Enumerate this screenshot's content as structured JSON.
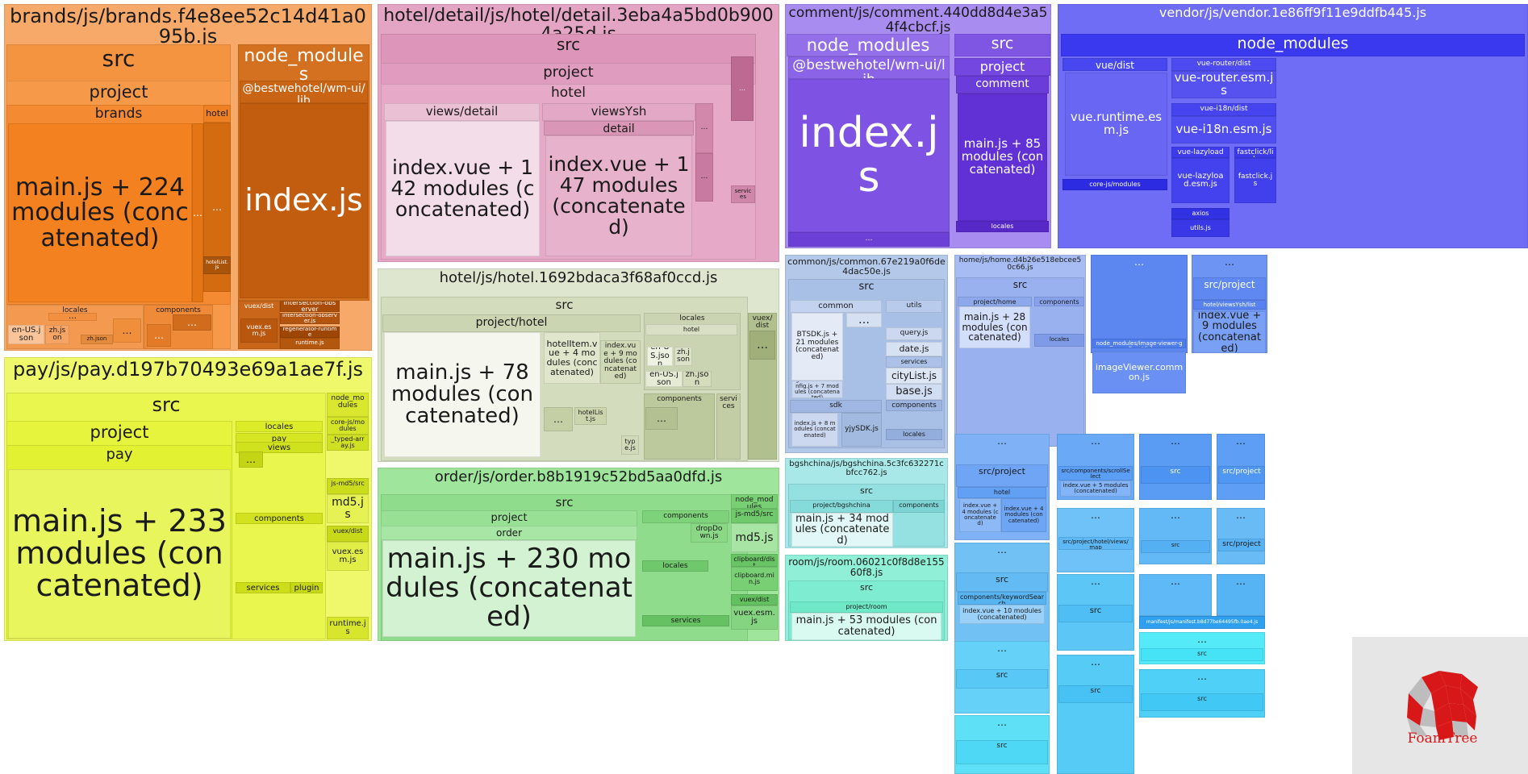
{
  "toolbar": {
    "sidebar_toggle_label": "›"
  },
  "logo": {
    "text": "FoamTree",
    "color": "#d81818"
  },
  "chart_data": {
    "type": "treemap",
    "nodes": [
      {
        "label": "brands/js/brands.f4e8ee52c14d41a095b.js",
        "color": "#f7a96a"
      },
      {
        "label": "src",
        "color": "#f59440"
      },
      {
        "label": "project",
        "color": "#f69a4a"
      },
      {
        "label": "brands",
        "color": "#f48a32"
      },
      {
        "label": "main.js + 224 modules (concatenated)",
        "color": "#f4811f"
      },
      {
        "label": "…",
        "color": "#e37514"
      },
      {
        "label": "hotel",
        "color": "#ee7f22"
      },
      {
        "label": "…",
        "color": "#d36c11"
      },
      {
        "label": "hotelList.js",
        "color": "#a8540b"
      },
      {
        "label": "locales",
        "color": "#f49a50"
      },
      {
        "label": "…",
        "color": "#f29040"
      },
      {
        "label": "en-US.json",
        "color": "#f9c49a"
      },
      {
        "label": "zh.json",
        "color": "#f5a464"
      },
      {
        "label": "zh.json",
        "color": "#e48a3c"
      },
      {
        "label": "…",
        "color": "#ef8f3c"
      },
      {
        "label": "components",
        "color": "#ee8a38"
      },
      {
        "label": "…",
        "color": "#e27a28"
      },
      {
        "label": "…",
        "color": "#d06c1c"
      },
      {
        "label": "node_modules",
        "color": "#d47120"
      },
      {
        "label": "@bestwehotel/wm-ui/lib",
        "color": "#c96414"
      },
      {
        "label": "index.js",
        "color": "#c25c0e"
      },
      {
        "label": "vuex/dist",
        "color": "#c9661a"
      },
      {
        "label": "vuex.esm.js",
        "color": "#b9570e"
      },
      {
        "label": "intersection-observer",
        "color": "#a94c08"
      },
      {
        "label": "intersection-observer.js",
        "color": "#b25510"
      },
      {
        "label": "regenerator-runtime",
        "color": "#9e4606"
      },
      {
        "label": "runtime.js",
        "color": "#b3570e"
      },
      {
        "label": "hotel/detail/js/hotel/detail.3eba4a5bd0b9004a25d.js",
        "color": "#e4a5c5"
      },
      {
        "label": "src",
        "color": "#dd96b9"
      },
      {
        "label": "project",
        "color": "#e09cbe"
      },
      {
        "label": "hotel",
        "color": "#e6aac8"
      },
      {
        "label": "views/detail",
        "color": "#eac0d5"
      },
      {
        "label": "index.vue + 142 modules (concatenated)",
        "color": "#f3dde8"
      },
      {
        "label": "viewsYsh",
        "color": "#e3a8c5"
      },
      {
        "label": "detail",
        "color": "#d996b6"
      },
      {
        "label": "index.vue + 147 modules (concatenated)",
        "color": "#e7b2cb"
      },
      {
        "label": "…",
        "color": "#d288ab"
      },
      {
        "label": "…",
        "color": "#c97aa0"
      },
      {
        "label": "…",
        "color": "#bd6a93"
      },
      {
        "label": "services",
        "color": "#cf86a8"
      },
      {
        "label": "comment/js/comment.440dd8d4e3a54f4cbcf.js",
        "color": "#a98cef"
      },
      {
        "label": "node_modules",
        "color": "#9370ea"
      },
      {
        "label": "@bestwehotel/wm-ui/lib",
        "color": "#8a63e6"
      },
      {
        "label": "index.js",
        "color": "#7e52e2"
      },
      {
        "label": "…",
        "color": "#6c3fd6"
      },
      {
        "label": "src",
        "color": "#7f55e4"
      },
      {
        "label": "project",
        "color": "#7347e0"
      },
      {
        "label": "comment",
        "color": "#6a3cda"
      },
      {
        "label": "main.js + 85 modules (concatenated)",
        "color": "#6131d6"
      },
      {
        "label": "locales",
        "color": "#5728c8"
      },
      {
        "label": "vendor/js/vendor.1e86ff9f11e9ddfb445.js",
        "color": "#6f6cf6"
      },
      {
        "label": "node_modules",
        "color": "#3a39f0"
      },
      {
        "label": "vue/dist",
        "color": "#4747ef"
      },
      {
        "label": "vue.runtime.esm.js",
        "color": "#6866f2"
      },
      {
        "label": "vue-router/dist",
        "color": "#4d4bef"
      },
      {
        "label": "vue-router.esm.js",
        "color": "#5552f0"
      },
      {
        "label": "vue-i18n/dist",
        "color": "#4544ee"
      },
      {
        "label": "vue-i18n.esm.js",
        "color": "#504ef0"
      },
      {
        "label": "vue-lazyload",
        "color": "#3d3bec"
      },
      {
        "label": "vue-lazyload.esm.js",
        "color": "#4442ee"
      },
      {
        "label": "fastclick/lib",
        "color": "#3b39ea"
      },
      {
        "label": "fastclick.js",
        "color": "#4240ec"
      },
      {
        "label": "core-js/modules",
        "color": "#2d2be2"
      },
      {
        "label": "axios",
        "color": "#3331e4"
      },
      {
        "label": "utils.js",
        "color": "#3a38e6"
      },
      {
        "label": "hotel/js/hotel.1692bdaca3f68af0ccd.js",
        "color": "#dfe6cf"
      },
      {
        "label": "src",
        "color": "#d3dcbd"
      },
      {
        "label": "project/hotel",
        "color": "#cbd5b2"
      },
      {
        "label": "main.js + 78 modules (concatenated)",
        "color": "#f5f7ef"
      },
      {
        "label": "hotelItem.vue + 4 modules (concatenated)",
        "color": "#dfe6cb"
      },
      {
        "label": "index.vue + 9 modules (concatenated)",
        "color": "#cfd9b6"
      },
      {
        "label": "…",
        "color": "#c4cfa6"
      },
      {
        "label": "hotelList.js",
        "color": "#cad4ad"
      },
      {
        "label": "locales",
        "color": "#cbd4b2"
      },
      {
        "label": "hotel",
        "color": "#d8dfc4"
      },
      {
        "label": "en-US.json",
        "color": "#eef2e2"
      },
      {
        "label": "zh.json",
        "color": "#dbe2c7"
      },
      {
        "label": "en-US.json",
        "color": "#e6ebd6"
      },
      {
        "label": "zh.json",
        "color": "#d4dcbd"
      },
      {
        "label": "components",
        "color": "#bcc99c"
      },
      {
        "label": "…",
        "color": "#b3c192"
      },
      {
        "label": "services",
        "color": "#c2cda6"
      },
      {
        "label": "type.js",
        "color": "#d1dab8"
      },
      {
        "label": "vuex/dist",
        "color": "#b1c08f"
      },
      {
        "label": "…",
        "color": "#9fb07b"
      },
      {
        "label": "pay/js/pay.d197b70493e69a1ae7f.js",
        "color": "#eef86a"
      },
      {
        "label": "src",
        "color": "#e9f64e"
      },
      {
        "label": "project",
        "color": "#e6f43e"
      },
      {
        "label": "pay",
        "color": "#e2f233"
      },
      {
        "label": "main.js + 233 modules (concatenated)",
        "color": "#e9f55c"
      },
      {
        "label": "locales",
        "color": "#dcec28"
      },
      {
        "label": "pay",
        "color": "#d6e623"
      },
      {
        "label": "views",
        "color": "#d0e11d"
      },
      {
        "label": "…",
        "color": "#c4d516"
      },
      {
        "label": "components",
        "color": "#d2e21e"
      },
      {
        "label": "services",
        "color": "#cddd19"
      },
      {
        "label": "plugins",
        "color": "#c7d815"
      },
      {
        "label": "node_modules",
        "color": "#d9e82e"
      },
      {
        "label": "core-js/modules",
        "color": "#d4e426"
      },
      {
        "label": "_typed-array.js",
        "color": "#d0e022"
      },
      {
        "label": "js-md5/src",
        "color": "#cbdc1d"
      },
      {
        "label": "md5.js",
        "color": "#e6f254"
      },
      {
        "label": "vuex/dist",
        "color": "#c7d919"
      },
      {
        "label": "vuex.esm.js",
        "color": "#e2ee48"
      },
      {
        "label": "runtime.js",
        "color": "#d7e62c"
      },
      {
        "label": "order/js/order.b8b1919c52bd5aa0dfd.js",
        "color": "#9fe59c"
      },
      {
        "label": "src",
        "color": "#8fdd8c"
      },
      {
        "label": "project",
        "color": "#97e094"
      },
      {
        "label": "order",
        "color": "#a7e6a4"
      },
      {
        "label": "main.js + 230 modules (concatenated)",
        "color": "#d3f2d1"
      },
      {
        "label": "components",
        "color": "#7ed27a"
      },
      {
        "label": "dropDown.js",
        "color": "#8ad886"
      },
      {
        "label": "locales",
        "color": "#6fc86b"
      },
      {
        "label": "services",
        "color": "#66c162"
      },
      {
        "label": "node_modules",
        "color": "#78cf74"
      },
      {
        "label": "js-md5/src",
        "color": "#70ca6c"
      },
      {
        "label": "md5.js",
        "color": "#a8e5a5"
      },
      {
        "label": "clipboard/dist",
        "color": "#69c465"
      },
      {
        "label": "clipboard.min.js",
        "color": "#78cf74"
      },
      {
        "label": "vuex/dist",
        "color": "#63bf5f"
      },
      {
        "label": "vuex.esm.js",
        "color": "#85d481"
      },
      {
        "label": "common/js/common.67e219a0f6de4dac50e.js",
        "color": "#b4c9ea"
      },
      {
        "label": "src",
        "color": "#a9c0e6"
      },
      {
        "label": "common",
        "color": "#c3d3ef"
      },
      {
        "label": "BTSDK.js + 21 modules (concatenated)",
        "color": "#e4ebf7"
      },
      {
        "label": "globalRouterConfig.js + 7 modules (concatenated)",
        "color": "#c9d7f0"
      },
      {
        "label": "…",
        "color": "#d6e0f3"
      },
      {
        "label": "utils",
        "color": "#b8cbec"
      },
      {
        "label": "query.js",
        "color": "#cbd8f0"
      },
      {
        "label": "date.js",
        "color": "#d7e1f4"
      },
      {
        "label": "services",
        "color": "#abc1e8"
      },
      {
        "label": "cityList.js",
        "color": "#dde6f5"
      },
      {
        "label": "base.js",
        "color": "#d1ddf2"
      },
      {
        "label": "sdk",
        "color": "#9fb7e2"
      },
      {
        "label": "index.js + 8 modules (concatenated)",
        "color": "#cbd8f0"
      },
      {
        "label": "yjySDK.js",
        "color": "#a2badf"
      },
      {
        "label": "components",
        "color": "#9bb4e0"
      },
      {
        "label": "locales",
        "color": "#93aedd"
      },
      {
        "label": "home/js/home.d4b26e518ebcee50c66.js",
        "color": "#a7bcf2"
      },
      {
        "label": "src",
        "color": "#99b1ef"
      },
      {
        "label": "project/home",
        "color": "#8ea8ec"
      },
      {
        "label": "main.js + 28 modules (concatenated)",
        "color": "#d3defa"
      },
      {
        "label": "components",
        "color": "#87a2ea"
      },
      {
        "label": "locales",
        "color": "#7f9be8"
      },
      {
        "label": "…",
        "color": "#5c86f0"
      },
      {
        "label": "node_modules/image-viewer-gallery/dist",
        "color": "#4f7ced"
      },
      {
        "label": "imageViewer.common.js",
        "color": "#6990f2"
      },
      {
        "label": "…",
        "color": "#6d94f3"
      },
      {
        "label": "src/project",
        "color": "#5f89f1"
      },
      {
        "label": "hotel/viewsYsh/list",
        "color": "#5782f0"
      },
      {
        "label": "index.vue + 9 modules (concatenated)",
        "color": "#79a0f5"
      },
      {
        "label": "bgshchina/js/bgshchina.5c3fc632271cbfcc762.js",
        "color": "#a8e8e8"
      },
      {
        "label": "src",
        "color": "#95e1e1"
      },
      {
        "label": "project/bgshchina",
        "color": "#85dada"
      },
      {
        "label": "main.js + 34 modules (concatenated)",
        "color": "#e2f7f7"
      },
      {
        "label": "components",
        "color": "#7cd4d4"
      },
      {
        "label": "room/js/room.06021c0f8d8e15560f8.js",
        "color": "#8ff0d7"
      },
      {
        "label": "src",
        "color": "#7decd0"
      },
      {
        "label": "project/room",
        "color": "#6fe8c8"
      },
      {
        "label": "main.js + 53 modules (concatenated)",
        "color": "#d9faf1"
      },
      {
        "label": "…",
        "color": "#7fb1f6"
      },
      {
        "label": "src/project",
        "color": "#6fa5f4"
      },
      {
        "label": "hotel",
        "color": "#62a0f3"
      },
      {
        "label": "index.vue + 4 modules (concatenated)",
        "color": "#8db9f7"
      },
      {
        "label": "index.vue + 4 modules (concatenated)",
        "color": "#6ea6f5"
      },
      {
        "label": "…",
        "color": "#6aa9f6"
      },
      {
        "label": "src/components/scrollSelect",
        "color": "#5b9ef5"
      },
      {
        "label": "index.vue + 5 modules (concatenated)",
        "color": "#82b4f7"
      },
      {
        "label": "…",
        "color": "#5a9cf4"
      },
      {
        "label": "src",
        "color": "#4c93f2"
      },
      {
        "label": "…",
        "color": "#5e9ff5"
      },
      {
        "label": "src/project",
        "color": "#5096f3"
      },
      {
        "label": "…",
        "color": "#72c1f5"
      },
      {
        "label": "src",
        "color": "#64baf3"
      },
      {
        "label": "components/keywordSearch",
        "color": "#58b3f1"
      },
      {
        "label": "index.vue + 10 modules (concatenated)",
        "color": "#9bd1f8"
      },
      {
        "label": "…",
        "color": "#6fc2f7"
      },
      {
        "label": "src/project/hotel/views/map",
        "color": "#5eb8f5"
      },
      {
        "label": "…",
        "color": "#62b9f5"
      },
      {
        "label": "src",
        "color": "#54b0f3"
      },
      {
        "label": "…",
        "color": "#68bbf5"
      },
      {
        "label": "src/project",
        "color": "#58b1f3"
      },
      {
        "label": "…",
        "color": "#66d1f8"
      },
      {
        "label": "src",
        "color": "#58c9f6"
      },
      {
        "label": "…",
        "color": "#5cc6f6"
      },
      {
        "label": "src",
        "color": "#4fbef4"
      },
      {
        "label": "…",
        "color": "#5fb9f6"
      },
      {
        "label": "…",
        "color": "#56b3f4"
      },
      {
        "label": "manifest/js/manifest.b8d77be64495fb.0ae4.js",
        "color": "#2f9ff0"
      },
      {
        "label": "…",
        "color": "#5ee0f7"
      },
      {
        "label": "src",
        "color": "#4fd8f5"
      },
      {
        "label": "…",
        "color": "#56cbf6"
      },
      {
        "label": "src",
        "color": "#48c2f4"
      },
      {
        "label": "…",
        "color": "#55eaf8"
      },
      {
        "label": "src",
        "color": "#46e3f6"
      },
      {
        "label": "…",
        "color": "#4fd0f6"
      },
      {
        "label": "src",
        "color": "#42c8f4"
      }
    ]
  }
}
